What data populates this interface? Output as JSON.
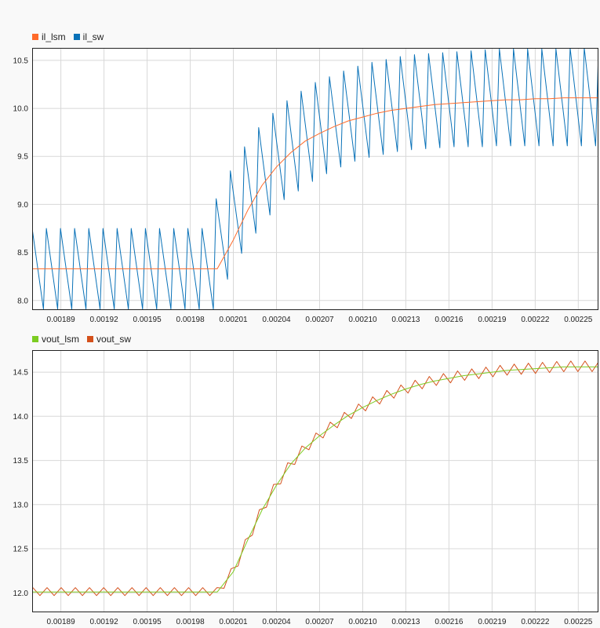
{
  "chart_data": [
    {
      "type": "line",
      "title": "",
      "xlabel": "",
      "ylabel": "",
      "legend_position": "top-left",
      "grid": true,
      "xlim": [
        0.00187,
        0.002264
      ],
      "ylim": [
        7.9,
        10.63
      ],
      "x_ticks": [
        0.00189,
        0.00192,
        0.00195,
        0.00198,
        0.00201,
        0.00204,
        0.00207,
        0.0021,
        0.00213,
        0.00216,
        0.00219,
        0.00222,
        0.00225
      ],
      "x_tick_labels": [
        "0.00189",
        "0.00192",
        "0.00195",
        "0.00198",
        "0.00201",
        "0.00204",
        "0.00207",
        "0.00210",
        "0.00213",
        "0.00216",
        "0.00219",
        "0.00222",
        "0.00225"
      ],
      "y_ticks": [
        8.0,
        8.5,
        9.0,
        9.5,
        10.0,
        10.5
      ],
      "y_tick_labels": [
        "8.0",
        "8.5",
        "9.0",
        "9.5",
        "10.0",
        "10.5"
      ],
      "step_time": 0.0019988,
      "switching_period": 9.85e-06,
      "series": [
        {
          "name": "il_lsm",
          "color": "#ff6a2a",
          "kind": "average",
          "x": [
            0.00187,
            0.0019988,
            0.00201,
            0.00202,
            0.00203,
            0.00204,
            0.00205,
            0.00206,
            0.00207,
            0.00208,
            0.00209,
            0.0021,
            0.00211,
            0.00212,
            0.00213,
            0.00214,
            0.00215,
            0.00216,
            0.00217,
            0.00218,
            0.00219,
            0.0022,
            0.00221,
            0.00222,
            0.00223,
            0.00224,
            0.002264
          ],
          "y": [
            8.33,
            8.33,
            8.63,
            8.94,
            9.2,
            9.39,
            9.54,
            9.66,
            9.74,
            9.81,
            9.87,
            9.91,
            9.95,
            9.98,
            10.0,
            10.02,
            10.04,
            10.05,
            10.06,
            10.07,
            10.08,
            10.09,
            10.09,
            10.1,
            10.1,
            10.11,
            10.11
          ]
        },
        {
          "name": "il_sw",
          "color": "#0a72b8",
          "kind": "switching",
          "peaks": [
            8.75,
            8.75,
            8.75,
            8.75,
            8.75,
            8.75,
            8.75,
            8.75,
            8.75,
            8.75,
            8.75,
            8.75,
            8.75,
            9.06,
            9.35,
            9.6,
            9.8,
            9.95,
            10.08,
            10.18,
            10.27,
            10.33,
            10.39,
            10.44,
            10.48,
            10.51,
            10.54,
            10.56,
            10.57,
            10.58,
            10.59,
            10.6,
            10.61,
            10.62,
            10.62,
            10.62,
            10.62,
            10.62,
            10.63,
            10.63
          ],
          "valleys": [
            7.91,
            7.91,
            7.91,
            7.91,
            7.91,
            7.91,
            7.91,
            7.91,
            7.91,
            7.91,
            7.91,
            7.91,
            7.91,
            8.22,
            8.49,
            8.7,
            8.89,
            9.05,
            9.14,
            9.24,
            9.32,
            9.39,
            9.45,
            9.49,
            9.52,
            9.55,
            9.57,
            9.58,
            9.59,
            9.6,
            9.6,
            9.6,
            9.61,
            9.61,
            9.61,
            9.61,
            9.61,
            9.61,
            9.61,
            9.61
          ]
        }
      ]
    },
    {
      "type": "line",
      "title": "",
      "xlabel": "",
      "ylabel": "",
      "legend_position": "top-left",
      "grid": true,
      "xlim": [
        0.00187,
        0.002264
      ],
      "ylim": [
        11.78,
        14.75
      ],
      "x_ticks": [
        0.00189,
        0.00192,
        0.00195,
        0.00198,
        0.00201,
        0.00204,
        0.00207,
        0.0021,
        0.00213,
        0.00216,
        0.00219,
        0.00222,
        0.00225
      ],
      "x_tick_labels": [
        "0.00189",
        "0.00192",
        "0.00195",
        "0.00198",
        "0.00201",
        "0.00204",
        "0.00207",
        "0.00210",
        "0.00213",
        "0.00216",
        "0.00219",
        "0.00222",
        "0.00225"
      ],
      "y_ticks": [
        12.0,
        12.5,
        13.0,
        13.5,
        14.0,
        14.5
      ],
      "y_tick_labels": [
        "12.0",
        "12.5",
        "13.0",
        "13.5",
        "14.0",
        "14.5"
      ],
      "step_time": 0.0019988,
      "switching_period": 9.85e-06,
      "series": [
        {
          "name": "vout_lsm",
          "color": "#7ccc22",
          "kind": "average",
          "x": [
            0.00187,
            0.0019988,
            0.00201,
            0.00202,
            0.00203,
            0.00204,
            0.00205,
            0.00206,
            0.00207,
            0.00208,
            0.00209,
            0.0021,
            0.00211,
            0.00212,
            0.00213,
            0.00214,
            0.00215,
            0.00216,
            0.00217,
            0.00218,
            0.00219,
            0.0022,
            0.00221,
            0.00222,
            0.00223,
            0.00224,
            0.002264
          ],
          "y": [
            12.01,
            12.01,
            12.24,
            12.6,
            12.94,
            13.22,
            13.46,
            13.64,
            13.78,
            13.9,
            14.01,
            14.1,
            14.18,
            14.25,
            14.31,
            14.36,
            14.4,
            14.43,
            14.46,
            14.48,
            14.5,
            14.52,
            14.53,
            14.54,
            14.55,
            14.56,
            14.56
          ]
        },
        {
          "name": "vout_sw",
          "color": "#d4501b",
          "kind": "ripple",
          "amplitude_before": 0.09,
          "amplitude_after": 0.12
        }
      ]
    }
  ]
}
